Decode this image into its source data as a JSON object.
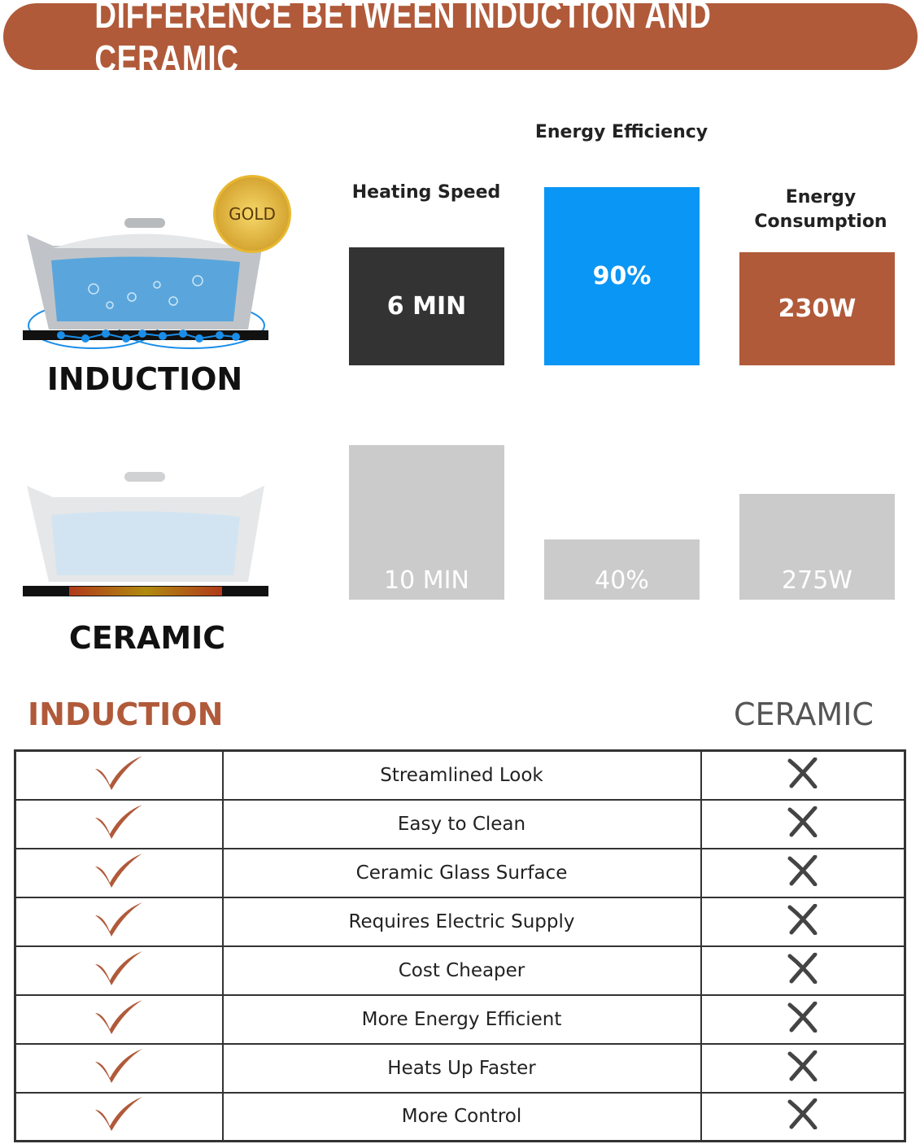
{
  "title": "DIFFERENCE BETWEEN INDUCTION AND CERAMIC",
  "badge": "GOLD",
  "rows_labels": {
    "induction": "INDUCTION",
    "ceramic": "CERAMIC"
  },
  "metrics": [
    {
      "header": "Heating Speed",
      "induction": "6 MIN",
      "ceramic": "10 MIN",
      "color": "#333333"
    },
    {
      "header": "Energy Efficiency",
      "induction": "90%",
      "ceramic": "40%",
      "color": "#0a96f5"
    },
    {
      "header": "Energy Consumption",
      "induction": "230W",
      "ceramic": "275W",
      "color": "#b05a3a"
    }
  ],
  "colors": {
    "accent": "#b05a3a",
    "inactive": "#cbcbcb"
  },
  "comparison": {
    "left_header": "INDUCTION",
    "right_header": "CERAMIC",
    "left_icon": "check-icon",
    "right_icon": "cross-icon",
    "features": [
      "Streamlined Look",
      "Easy to Clean",
      "Ceramic Glass Surface",
      "Requires Electric Supply",
      "Cost Cheaper",
      "More Energy Efficient",
      "Heats Up Faster",
      "More Control"
    ]
  }
}
